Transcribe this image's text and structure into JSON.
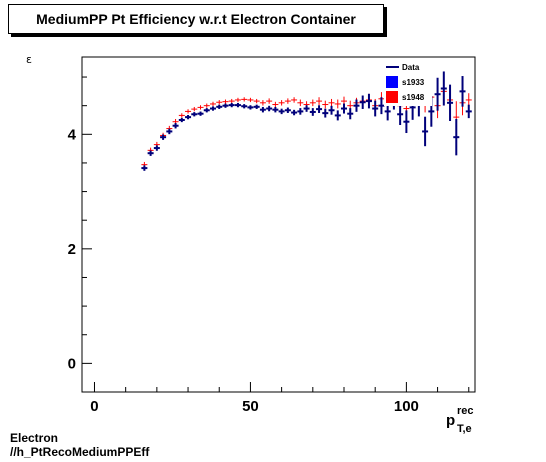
{
  "title": "MediumPP Pt Efficiency w.r.t Electron Container",
  "footer": {
    "line1": "Electron",
    "line2": "//h_PtRecoMediumPPEff"
  },
  "chart_data": {
    "type": "scatter",
    "ylabel": "ε",
    "xlabel_main": "p",
    "xlabel_sup": "rec",
    "xlabel_sub": "T,e",
    "xlim": [
      -4,
      122
    ],
    "ylim": [
      -0.5,
      5.35
    ],
    "x_ticks": [
      0,
      50,
      100
    ],
    "y_ticks": [
      0,
      2,
      4
    ],
    "legend_position": "top-right",
    "series": [
      {
        "name": "Data",
        "color": "#00007a",
        "x": [
          16,
          18,
          20,
          22,
          24,
          26,
          28,
          30,
          32,
          34,
          36,
          38,
          40,
          42,
          44,
          46,
          48,
          50,
          52,
          54,
          56,
          58,
          60,
          62,
          64,
          66,
          68,
          70,
          72,
          74,
          76,
          78,
          80,
          82,
          84,
          86,
          88,
          90,
          92,
          94,
          96,
          98,
          100,
          102,
          104,
          106,
          108,
          110,
          112,
          114,
          116,
          118,
          120
        ],
        "y": [
          3.41,
          3.67,
          3.76,
          3.95,
          4.05,
          4.15,
          4.25,
          4.3,
          4.35,
          4.36,
          4.42,
          4.45,
          4.48,
          4.5,
          4.51,
          4.51,
          4.49,
          4.47,
          4.48,
          4.43,
          4.45,
          4.43,
          4.4,
          4.42,
          4.38,
          4.4,
          4.45,
          4.39,
          4.44,
          4.37,
          4.42,
          4.33,
          4.45,
          4.36,
          4.5,
          4.56,
          4.58,
          4.45,
          4.5,
          4.4,
          4.6,
          4.35,
          4.22,
          4.47,
          4.55,
          4.05,
          4.4,
          4.7,
          4.8,
          4.55,
          3.95,
          4.75,
          4.4
        ],
        "yerr": [
          0.03,
          0.03,
          0.03,
          0.03,
          0.03,
          0.03,
          0.02,
          0.02,
          0.02,
          0.02,
          0.02,
          0.02,
          0.02,
          0.02,
          0.02,
          0.02,
          0.02,
          0.02,
          0.02,
          0.03,
          0.03,
          0.03,
          0.03,
          0.03,
          0.03,
          0.04,
          0.04,
          0.05,
          0.05,
          0.06,
          0.06,
          0.07,
          0.07,
          0.08,
          0.09,
          0.1,
          0.11,
          0.12,
          0.13,
          0.14,
          0.15,
          0.17,
          0.18,
          0.2,
          0.22,
          0.24,
          0.25,
          0.27,
          0.28,
          0.3,
          0.3,
          0.25,
          0.1
        ]
      },
      {
        "name": "s1933",
        "color": "#0000ff",
        "x": [],
        "y": []
      },
      {
        "name": "s1948",
        "color": "#ff0000",
        "x": [
          16,
          18,
          20,
          22,
          24,
          26,
          28,
          30,
          32,
          34,
          36,
          38,
          40,
          42,
          44,
          46,
          48,
          50,
          52,
          54,
          56,
          58,
          60,
          62,
          64,
          66,
          68,
          70,
          72,
          74,
          76,
          78,
          80,
          82,
          84,
          86,
          88,
          90,
          92,
          94,
          96,
          98,
          100,
          102,
          104,
          106,
          108,
          110,
          112,
          114,
          116,
          118,
          120
        ],
        "y": [
          3.47,
          3.72,
          3.82,
          3.98,
          4.1,
          4.22,
          4.33,
          4.4,
          4.44,
          4.47,
          4.5,
          4.53,
          4.56,
          4.57,
          4.58,
          4.6,
          4.61,
          4.6,
          4.58,
          4.55,
          4.58,
          4.52,
          4.55,
          4.58,
          4.6,
          4.55,
          4.52,
          4.55,
          4.58,
          4.52,
          4.55,
          4.53,
          4.58,
          4.5,
          4.55,
          4.58,
          4.6,
          4.5,
          4.62,
          4.55,
          4.58,
          4.5,
          4.45,
          4.6,
          4.52,
          4.58,
          4.65,
          4.5,
          4.75,
          4.6,
          4.3,
          4.55,
          4.6
        ],
        "yerr": [
          0.03,
          0.03,
          0.03,
          0.03,
          0.03,
          0.03,
          0.02,
          0.02,
          0.02,
          0.02,
          0.02,
          0.02,
          0.02,
          0.02,
          0.02,
          0.02,
          0.02,
          0.02,
          0.02,
          0.03,
          0.03,
          0.03,
          0.03,
          0.03,
          0.03,
          0.04,
          0.04,
          0.04,
          0.05,
          0.05,
          0.05,
          0.06,
          0.06,
          0.07,
          0.07,
          0.08,
          0.09,
          0.1,
          0.1,
          0.11,
          0.12,
          0.13,
          0.14,
          0.15,
          0.16,
          0.18,
          0.19,
          0.2,
          0.22,
          0.24,
          0.26,
          0.2,
          0.1
        ]
      }
    ]
  }
}
